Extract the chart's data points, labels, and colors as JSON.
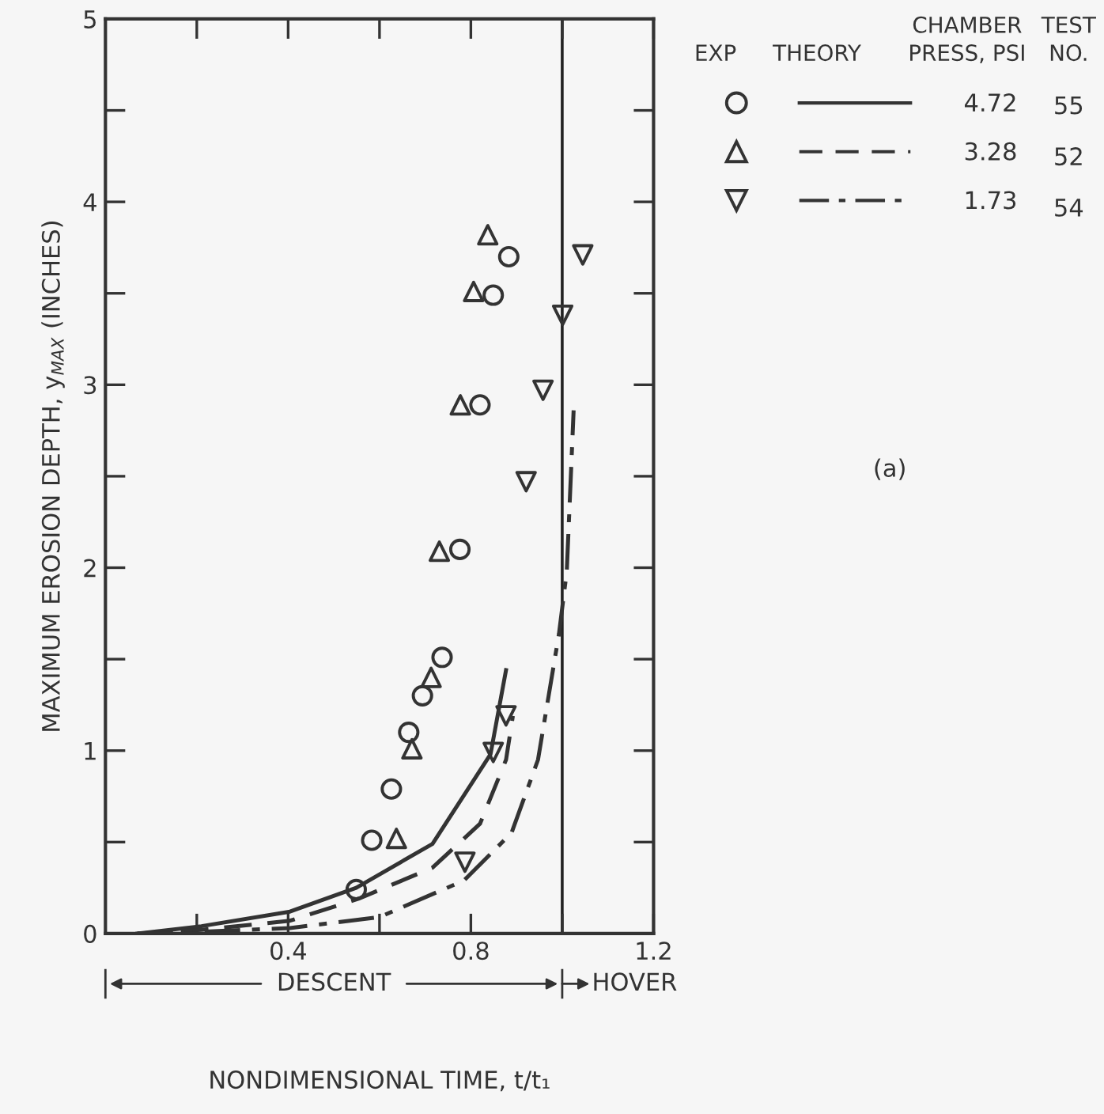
{
  "chart_data": {
    "type": "scatter",
    "xlabel": "NONDIMENSIONAL TIME, t/t₁",
    "ylabel": "MAXIMUM EROSION DEPTH, y$_{MAX}$ (INCHES)",
    "xlim": [
      0,
      1.2
    ],
    "ylim": [
      0,
      5
    ],
    "xticks": [
      {
        "value": 0.2,
        "label": null
      },
      0.4,
      {
        "value": 0.6,
        "label": null
      },
      0.8,
      {
        "value": 1.0,
        "label": null
      },
      1.2
    ],
    "yticks": [
      0,
      {
        "value": 0.5,
        "label": null
      },
      1,
      {
        "value": 1.5,
        "label": null
      },
      2,
      {
        "value": 2.5,
        "label": null
      },
      3,
      {
        "value": 3.5,
        "label": null
      },
      4,
      {
        "value": 4.5,
        "label": null
      },
      5
    ],
    "grid": false,
    "legend": "right",
    "series": [
      {
        "name": "4.72",
        "marker": "circle",
        "color": "#333333",
        "x": [
          0.549,
          0.583,
          0.626,
          0.664,
          0.694,
          0.737,
          0.776,
          0.82,
          0.849,
          0.883
        ],
        "values": [
          0.24,
          0.51,
          0.79,
          1.1,
          1.3,
          1.51,
          2.1,
          2.89,
          3.49,
          3.7
        ]
      },
      {
        "name": "3.28",
        "marker": "triangle",
        "color": "#333333",
        "x": [
          0.637,
          0.671,
          0.713,
          0.731,
          0.777,
          0.806,
          0.837
        ],
        "values": [
          0.52,
          1.01,
          1.4,
          2.09,
          2.89,
          3.51,
          3.82
        ]
      },
      {
        "name": "1.73",
        "marker": "triangle_down",
        "color": "#333333",
        "x": [
          0.787,
          0.849,
          0.877,
          0.921,
          0.958,
          1.001,
          1.045
        ],
        "values": [
          0.39,
          0.99,
          1.19,
          2.47,
          2.97,
          3.38,
          3.71
        ]
      },
      {
        "type": "line",
        "line_style": "solid",
        "color": "#333333",
        "x": [
          0.07,
          0.21,
          0.404,
          0.549,
          0.716,
          0.843,
          0.877
        ],
        "values": [
          0,
          0.04,
          0.12,
          0.25,
          0.49,
          0.98,
          1.44
        ]
      },
      {
        "type": "line",
        "line_style": "dashed",
        "color": "#333333",
        "x": [
          0.07,
          0.21,
          0.404,
          0.554,
          0.716,
          0.82,
          0.877,
          0.892
        ],
        "values": [
          0,
          0.02,
          0.07,
          0.19,
          0.36,
          0.6,
          0.95,
          1.19
        ]
      },
      {
        "type": "line",
        "line_style": "dashdot",
        "color": "#333333",
        "x": [
          0.07,
          0.21,
          0.404,
          0.6,
          0.785,
          0.889,
          0.947,
          0.993,
          1.01,
          1.025
        ],
        "values": [
          0,
          0.01,
          0.03,
          0.09,
          0.29,
          0.55,
          0.95,
          1.64,
          1.98,
          2.86
        ]
      }
    ],
    "ref_lines": [
      {
        "axis": "x",
        "value": 1.0,
        "color": "#222222"
      }
    ],
    "annotations": [
      "EXP",
      "THEORY",
      "CHAMBER\nPRESS, PSI",
      "TEST\nNO.",
      "55",
      "52",
      "54",
      "(a)",
      "DESCENT",
      "HOVER"
    ]
  }
}
